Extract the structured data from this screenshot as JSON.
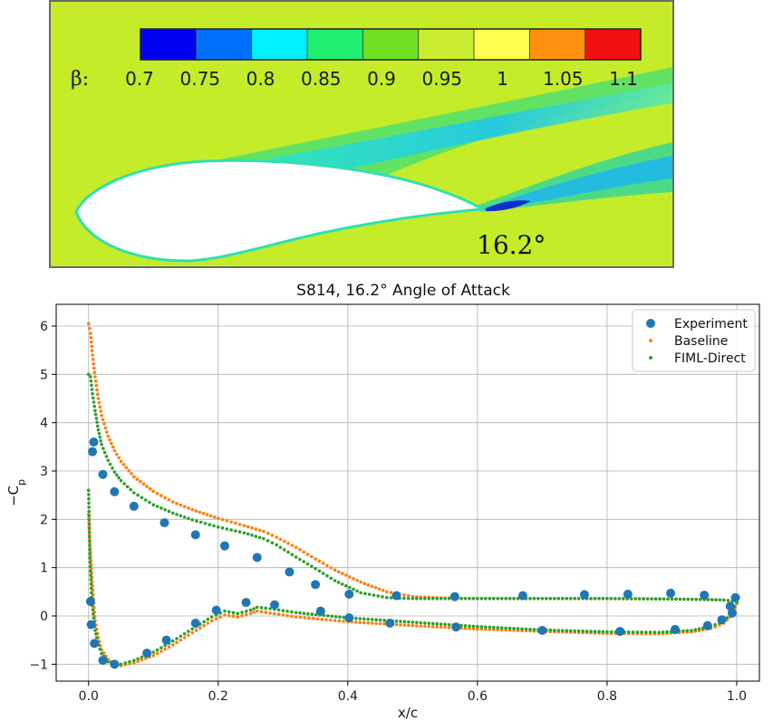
{
  "contour": {
    "colorbar_label": "β:",
    "colorbar_ticks": [
      "0.7",
      "0.75",
      "0.8",
      "0.85",
      "0.9",
      "0.95",
      "1",
      "1.05",
      "1.1"
    ],
    "colorbar_colors": [
      "#0000f0",
      "#0070ff",
      "#00f0ff",
      "#20ee70",
      "#70e020",
      "#c8ec30",
      "#ffff50",
      "#ff9010",
      "#f01010"
    ],
    "background_color": "#c4ec28",
    "aoa_label": "16.2°"
  },
  "chart_data": {
    "type": "scatter",
    "title": "S814, 16.2° Angle of Attack",
    "xlabel": "x/c",
    "ylabel": "−C_p",
    "xlim": [
      -0.05,
      1.035
    ],
    "ylim": [
      -1.35,
      6.45
    ],
    "xticks": [
      "0.0",
      "0.2",
      "0.4",
      "0.6",
      "0.8",
      "1.0"
    ],
    "yticks": [
      "−1",
      "0",
      "1",
      "2",
      "3",
      "4",
      "5",
      "6"
    ],
    "grid": true,
    "legend_position": "top-right",
    "series": [
      {
        "name": "Experiment",
        "color": "#1f77b4",
        "marker": "large-dot",
        "points": [
          [
            0.003,
            0.3
          ],
          [
            0.004,
            -0.18
          ],
          [
            0.006,
            3.4
          ],
          [
            0.008,
            3.6
          ],
          [
            0.009,
            -0.57
          ],
          [
            0.022,
            2.93
          ],
          [
            0.022,
            -0.92
          ],
          [
            0.04,
            2.57
          ],
          [
            0.04,
            -1.0
          ],
          [
            0.07,
            2.27
          ],
          [
            0.09,
            -0.77
          ],
          [
            0.117,
            1.93
          ],
          [
            0.12,
            -0.5
          ],
          [
            0.165,
            1.68
          ],
          [
            0.165,
            -0.15
          ],
          [
            0.197,
            0.12
          ],
          [
            0.21,
            1.45
          ],
          [
            0.243,
            0.28
          ],
          [
            0.26,
            1.21
          ],
          [
            0.287,
            0.23
          ],
          [
            0.31,
            0.91
          ],
          [
            0.35,
            0.65
          ],
          [
            0.358,
            0.1
          ],
          [
            0.402,
            0.45
          ],
          [
            0.402,
            -0.04
          ],
          [
            0.465,
            -0.15
          ],
          [
            0.475,
            0.42
          ],
          [
            0.565,
            0.4
          ],
          [
            0.567,
            -0.23
          ],
          [
            0.67,
            0.42
          ],
          [
            0.7,
            -0.3
          ],
          [
            0.765,
            0.44
          ],
          [
            0.82,
            -0.32
          ],
          [
            0.832,
            0.45
          ],
          [
            0.898,
            0.47
          ],
          [
            0.905,
            -0.28
          ],
          [
            0.95,
            0.43
          ],
          [
            0.955,
            -0.2
          ],
          [
            0.977,
            -0.08
          ],
          [
            0.99,
            0.2
          ],
          [
            0.993,
            0.06
          ],
          [
            0.998,
            0.38
          ]
        ]
      },
      {
        "name": "Baseline",
        "color": "#ff7f0e",
        "marker": "small-dot",
        "curves": {
          "upper": [
            [
              0.0,
              6.05
            ],
            [
              0.003,
              5.85
            ],
            [
              0.006,
              5.4
            ],
            [
              0.01,
              4.95
            ],
            [
              0.015,
              4.5
            ],
            [
              0.02,
              4.15
            ],
            [
              0.03,
              3.72
            ],
            [
              0.04,
              3.42
            ],
            [
              0.05,
              3.2
            ],
            [
              0.07,
              2.88
            ],
            [
              0.1,
              2.58
            ],
            [
              0.13,
              2.36
            ],
            [
              0.16,
              2.2
            ],
            [
              0.2,
              2.02
            ],
            [
              0.24,
              1.87
            ],
            [
              0.27,
              1.75
            ],
            [
              0.29,
              1.63
            ],
            [
              0.32,
              1.42
            ],
            [
              0.35,
              1.18
            ],
            [
              0.38,
              0.95
            ],
            [
              0.42,
              0.7
            ],
            [
              0.46,
              0.5
            ],
            [
              0.5,
              0.4
            ],
            [
              0.55,
              0.37
            ],
            [
              0.6,
              0.36
            ],
            [
              0.7,
              0.36
            ],
            [
              0.8,
              0.36
            ],
            [
              0.9,
              0.35
            ],
            [
              0.95,
              0.34
            ],
            [
              0.98,
              0.33
            ],
            [
              1.0,
              0.3
            ]
          ],
          "lower": [
            [
              0.0,
              2.1
            ],
            [
              0.002,
              1.5
            ],
            [
              0.005,
              0.8
            ],
            [
              0.01,
              -0.1
            ],
            [
              0.015,
              -0.45
            ],
            [
              0.02,
              -0.7
            ],
            [
              0.03,
              -0.9
            ],
            [
              0.04,
              -0.99
            ],
            [
              0.05,
              -1.03
            ],
            [
              0.07,
              -0.97
            ],
            [
              0.1,
              -0.82
            ],
            [
              0.13,
              -0.6
            ],
            [
              0.16,
              -0.35
            ],
            [
              0.19,
              -0.1
            ],
            [
              0.21,
              0.02
            ],
            [
              0.23,
              -0.02
            ],
            [
              0.25,
              0.05
            ],
            [
              0.26,
              0.1
            ],
            [
              0.28,
              0.06
            ],
            [
              0.32,
              -0.02
            ],
            [
              0.4,
              -0.12
            ],
            [
              0.5,
              -0.2
            ],
            [
              0.6,
              -0.27
            ],
            [
              0.7,
              -0.32
            ],
            [
              0.8,
              -0.36
            ],
            [
              0.88,
              -0.37
            ],
            [
              0.93,
              -0.33
            ],
            [
              0.96,
              -0.26
            ],
            [
              0.98,
              -0.15
            ],
            [
              0.99,
              -0.02
            ],
            [
              1.0,
              0.25
            ]
          ]
        }
      },
      {
        "name": "FIML-Direct",
        "color": "#2ca02c",
        "marker": "small-dot",
        "curves": {
          "upper": [
            [
              0.0,
              5.0
            ],
            [
              0.003,
              4.95
            ],
            [
              0.006,
              4.6
            ],
            [
              0.01,
              4.25
            ],
            [
              0.015,
              3.85
            ],
            [
              0.02,
              3.55
            ],
            [
              0.03,
              3.22
            ],
            [
              0.04,
              2.98
            ],
            [
              0.05,
              2.8
            ],
            [
              0.07,
              2.55
            ],
            [
              0.1,
              2.3
            ],
            [
              0.13,
              2.13
            ],
            [
              0.16,
              1.99
            ],
            [
              0.2,
              1.84
            ],
            [
              0.24,
              1.72
            ],
            [
              0.27,
              1.6
            ],
            [
              0.29,
              1.47
            ],
            [
              0.32,
              1.22
            ],
            [
              0.35,
              0.98
            ],
            [
              0.38,
              0.73
            ],
            [
              0.42,
              0.48
            ],
            [
              0.46,
              0.38
            ],
            [
              0.5,
              0.36
            ],
            [
              0.55,
              0.36
            ],
            [
              0.6,
              0.36
            ],
            [
              0.7,
              0.36
            ],
            [
              0.8,
              0.36
            ],
            [
              0.9,
              0.35
            ],
            [
              0.95,
              0.34
            ],
            [
              0.98,
              0.33
            ],
            [
              1.0,
              0.3
            ]
          ],
          "lower": [
            [
              0.0,
              2.6
            ],
            [
              0.002,
              1.2
            ],
            [
              0.005,
              0.3
            ],
            [
              0.01,
              -0.3
            ],
            [
              0.015,
              -0.6
            ],
            [
              0.02,
              -0.78
            ],
            [
              0.03,
              -0.95
            ],
            [
              0.04,
              -1.01
            ],
            [
              0.05,
              -1.0
            ],
            [
              0.07,
              -0.92
            ],
            [
              0.1,
              -0.75
            ],
            [
              0.13,
              -0.52
            ],
            [
              0.16,
              -0.27
            ],
            [
              0.19,
              -0.02
            ],
            [
              0.21,
              0.1
            ],
            [
              0.23,
              0.05
            ],
            [
              0.25,
              0.12
            ],
            [
              0.26,
              0.18
            ],
            [
              0.28,
              0.15
            ],
            [
              0.32,
              0.07
            ],
            [
              0.4,
              -0.04
            ],
            [
              0.5,
              -0.13
            ],
            [
              0.6,
              -0.22
            ],
            [
              0.7,
              -0.29
            ],
            [
              0.8,
              -0.33
            ],
            [
              0.88,
              -0.34
            ],
            [
              0.93,
              -0.3
            ],
            [
              0.96,
              -0.22
            ],
            [
              0.98,
              -0.1
            ],
            [
              0.99,
              0.02
            ],
            [
              1.0,
              0.28
            ]
          ]
        }
      }
    ]
  }
}
